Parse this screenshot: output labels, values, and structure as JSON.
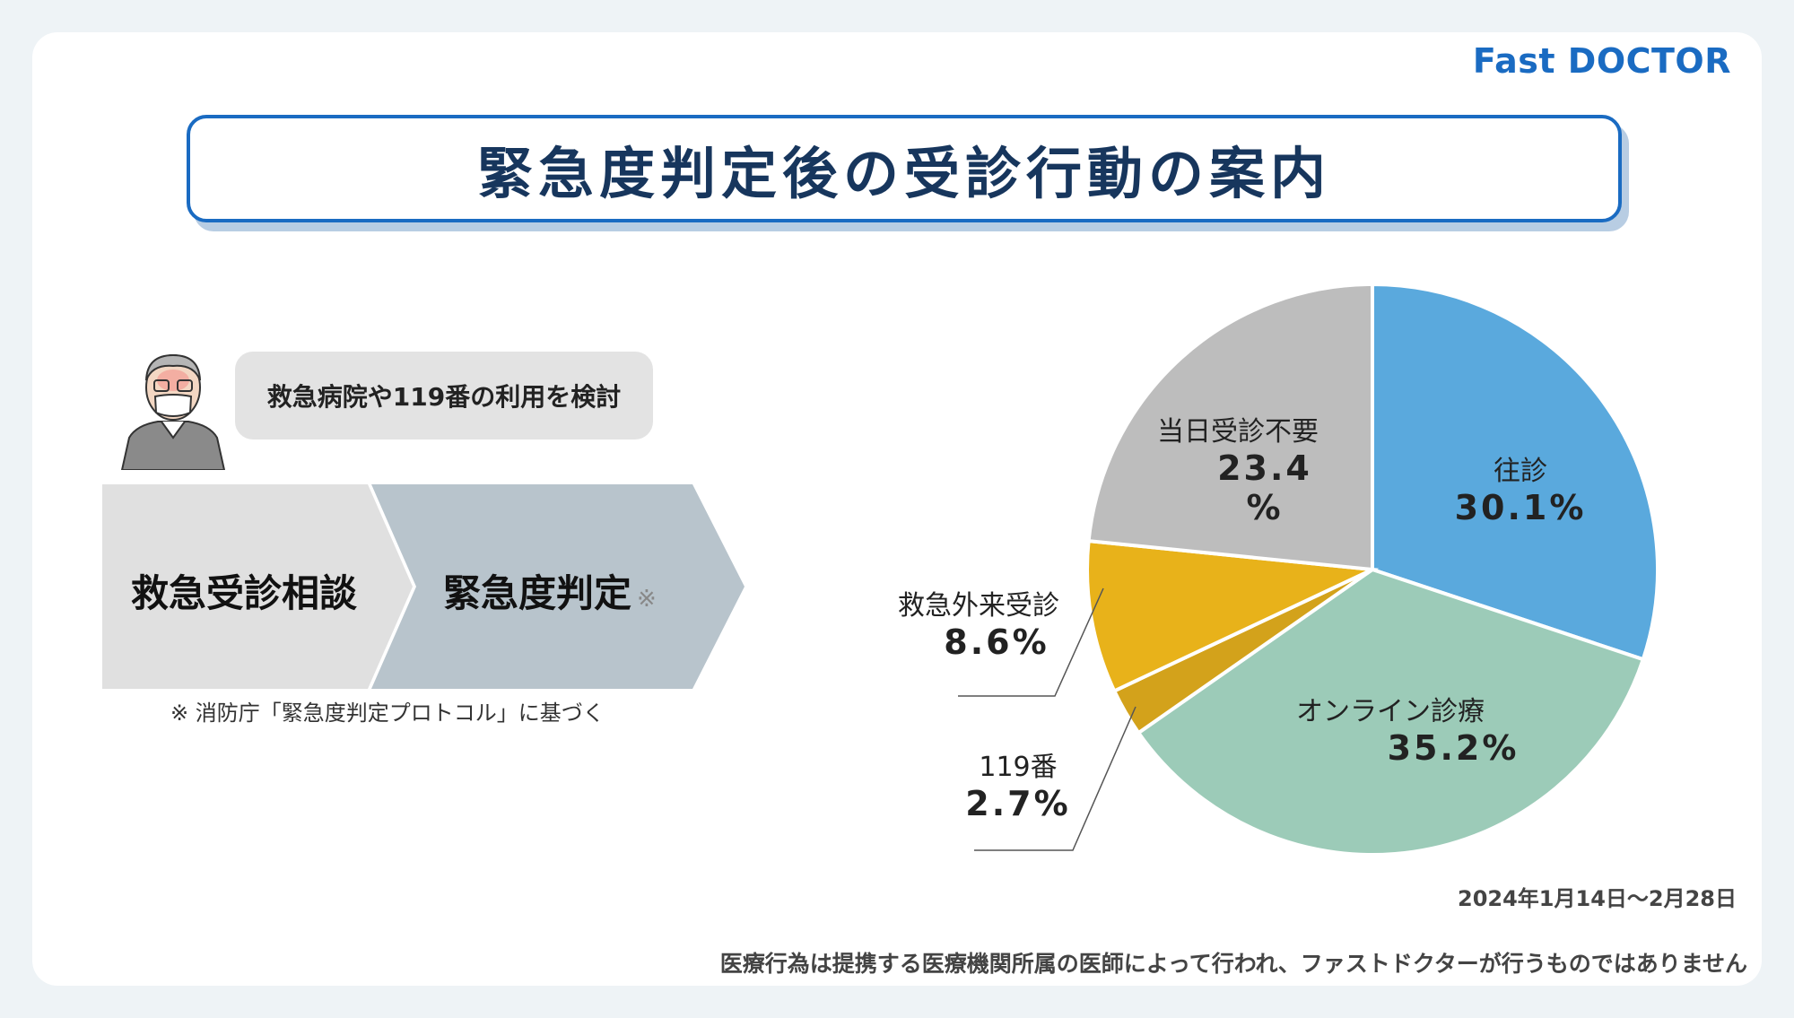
{
  "brand": "Fast DOCTOR",
  "title": "緊急度判定後の受診行動の案内",
  "bubble": "救急病院や119番の利用を検討",
  "flow": {
    "step1": "救急受診相談",
    "step2": "緊急度判定",
    "step2_mark": "※"
  },
  "note": "※ 消防庁「緊急度判定プロトコル」に基づく",
  "period": "2024年1月14日〜2月28日",
  "disclaimer": "医療行為は提携する医療機関所属の医師によって行われ、ファストドクターが行うものではありません",
  "chart_data": {
    "type": "pie",
    "slices": [
      {
        "name": "往診",
        "value": 30.1,
        "value_label": "30.1%",
        "color": "#5aa9dd"
      },
      {
        "name": "オンライン診療",
        "value": 35.2,
        "value_label": "35.2%",
        "color": "#9ccbb8"
      },
      {
        "name": "119番",
        "value": 2.7,
        "value_label": "2.7%",
        "color": "#d3a21b"
      },
      {
        "name": "救急外来受診",
        "value": 8.6,
        "value_label": "8.6%",
        "color": "#e8b21a"
      },
      {
        "name": "当日受診不要",
        "value": 23.4,
        "value_label": "23.4 %",
        "color": "#bdbdbd"
      }
    ]
  }
}
